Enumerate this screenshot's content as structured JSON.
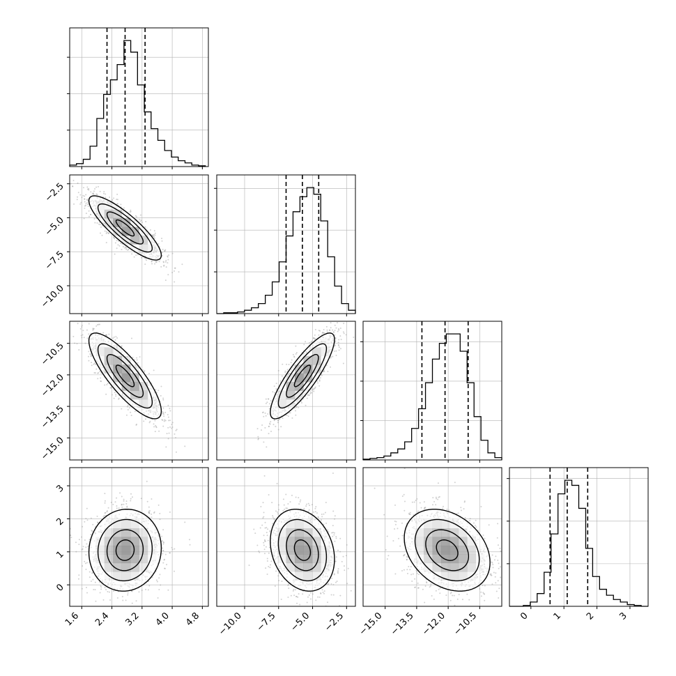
{
  "chart_data": {
    "type": "corner",
    "title": "",
    "parameters": 4,
    "colors": {
      "line": "#000000",
      "grid": "#b0b0b0",
      "density": "#000000",
      "background": "#ffffff"
    },
    "axes": [
      {
        "range": [
          1.28,
          4.96
        ],
        "ticks": [
          1.6,
          2.4,
          3.2,
          4.0,
          4.8
        ],
        "tick_labels": [
          "1.6",
          "2.4",
          "3.2",
          "4.0",
          "4.8"
        ]
      },
      {
        "range": [
          -12.05,
          -1.85
        ],
        "ticks": [
          -10.0,
          -7.5,
          -5.0,
          -2.5
        ],
        "tick_labels": [
          "−10.0",
          "−7.5",
          "−5.0",
          "−2.5"
        ]
      },
      {
        "range": [
          -16.05,
          -9.45
        ],
        "ticks": [
          -15.0,
          -13.5,
          -12.0,
          -10.5
        ],
        "tick_labels": [
          "−15.0",
          "−13.5",
          "−12.0",
          "−10.5"
        ]
      },
      {
        "range": [
          -0.65,
          3.55
        ],
        "ticks": [
          0,
          1,
          2,
          3
        ],
        "tick_labels": [
          "0",
          "1",
          "2",
          "3"
        ]
      }
    ],
    "histograms": [
      {
        "parameter": 0,
        "bin_edges": [
          1.28,
          1.46,
          1.64,
          1.82,
          2.0,
          2.18,
          2.36,
          2.54,
          2.72,
          2.9,
          3.08,
          3.26,
          3.44,
          3.62,
          3.8,
          3.98,
          4.16,
          4.34,
          4.52,
          4.7,
          4.88
        ],
        "counts": [
          2,
          4,
          10,
          28,
          66,
          99,
          119,
          140,
          173,
          157,
          112,
          75,
          52,
          36,
          22,
          13,
          8,
          5,
          2,
          1
        ],
        "quantiles": [
          2.27,
          2.75,
          3.28
        ]
      },
      {
        "parameter": 1,
        "bin_edges": [
          -12.05,
          -11.54,
          -11.03,
          -10.52,
          -10.01,
          -9.5,
          -8.99,
          -8.48,
          -7.97,
          -7.46,
          -6.95,
          -6.44,
          -5.93,
          -5.42,
          -4.91,
          -4.4,
          -3.89,
          -3.38,
          -2.87,
          -2.36,
          -1.85
        ],
        "counts": [
          0,
          1,
          1,
          2,
          4,
          7,
          12,
          22,
          38,
          62,
          93,
          122,
          140,
          151,
          143,
          111,
          68,
          33,
          12,
          4
        ],
        "quantiles": [
          -6.95,
          -5.75,
          -4.55
        ]
      },
      {
        "parameter": 2,
        "bin_edges": [
          -16.05,
          -15.72,
          -15.39,
          -15.06,
          -14.73,
          -14.4,
          -14.07,
          -13.74,
          -13.41,
          -13.08,
          -12.75,
          -12.42,
          -12.09,
          -11.76,
          -11.43,
          -11.1,
          -10.77,
          -10.44,
          -10.11,
          -9.78,
          -9.45
        ],
        "counts": [
          1,
          2,
          3,
          5,
          9,
          14,
          23,
          40,
          65,
          98,
          128,
          148,
          160,
          160,
          138,
          98,
          55,
          25,
          9,
          3
        ],
        "quantiles": [
          -13.25,
          -12.15,
          -11.05
        ]
      },
      {
        "parameter": 3,
        "bin_edges": [
          -0.65,
          -0.44,
          -0.23,
          -0.02,
          0.19,
          0.4,
          0.61,
          0.82,
          1.03,
          1.24,
          1.45,
          1.66,
          1.87,
          2.08,
          2.29,
          2.5,
          2.71,
          2.92,
          3.13,
          3.34,
          3.55
        ],
        "counts": [
          0,
          0,
          1,
          5,
          15,
          40,
          85,
          132,
          148,
          142,
          115,
          68,
          35,
          20,
          13,
          8,
          5,
          2,
          1,
          0
        ],
        "quantiles": [
          0.58,
          1.1,
          1.72
        ]
      }
    ],
    "joints": [
      {
        "x": 0,
        "y": 1,
        "mean": [
          2.75,
          -5.75
        ],
        "sd": [
          0.48,
          1.18
        ],
        "corr": -0.85
      },
      {
        "x": 0,
        "y": 2,
        "mean": [
          2.75,
          -12.05
        ],
        "sd": [
          0.48,
          1.02
        ],
        "corr": -0.82
      },
      {
        "x": 1,
        "y": 2,
        "mean": [
          -5.75,
          -12.05
        ],
        "sd": [
          1.18,
          1.02
        ],
        "corr": 0.85
      },
      {
        "x": 0,
        "y": 3,
        "mean": [
          2.75,
          1.05
        ],
        "sd": [
          0.48,
          0.62
        ],
        "corr": 0.05
      },
      {
        "x": 1,
        "y": 3,
        "mean": [
          -5.75,
          1.05
        ],
        "sd": [
          1.18,
          0.62
        ],
        "corr": -0.22
      },
      {
        "x": 2,
        "y": 3,
        "mean": [
          -12.05,
          1.05
        ],
        "sd": [
          1.02,
          0.62
        ],
        "corr": -0.3
      }
    ]
  }
}
